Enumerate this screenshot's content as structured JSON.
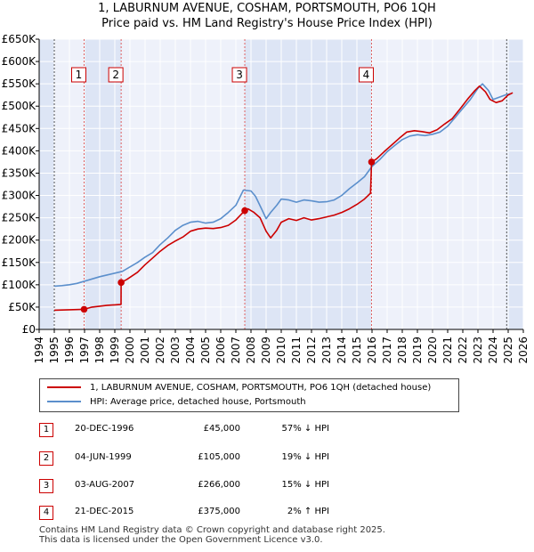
{
  "chart_data": {
    "type": "line",
    "title": "1, LABURNUM AVENUE, COSHAM, PORTSMOUTH, PO6 1QH",
    "subtitle": "Price paid vs. HM Land Registry's House Price Index (HPI)",
    "xlim": [
      1994,
      2026
    ],
    "ylim": [
      0,
      650000
    ],
    "x_ticks": [
      1994,
      1995,
      1996,
      1997,
      1998,
      1999,
      2000,
      2001,
      2002,
      2003,
      2004,
      2005,
      2006,
      2007,
      2008,
      2009,
      2010,
      2011,
      2012,
      2013,
      2014,
      2015,
      2016,
      2017,
      2018,
      2019,
      2020,
      2021,
      2022,
      2023,
      2024,
      2025,
      2026
    ],
    "y_ticks": [
      0,
      50000,
      100000,
      150000,
      200000,
      250000,
      300000,
      350000,
      400000,
      450000,
      500000,
      550000,
      600000,
      650000
    ],
    "y_tick_labels": [
      "£0",
      "£50K",
      "£100K",
      "£150K",
      "£200K",
      "£250K",
      "£300K",
      "£350K",
      "£400K",
      "£450K",
      "£500K",
      "£550K",
      "£600K",
      "£650K"
    ],
    "shaded_ranges": [
      [
        1994,
        1995
      ],
      [
        1996.97,
        1999.42
      ],
      [
        2007.59,
        2015.97
      ],
      [
        2024.9,
        2026
      ]
    ],
    "series": [
      {
        "name": "1, LABURNUM AVENUE, COSHAM, PORTSMOUTH, PO6 1QH (detached house)",
        "color": "#cc0000",
        "x": [
          1995.0,
          1996.0,
          1996.97,
          1997.5,
          1998.0,
          1998.5,
          1999.0,
          1999.41,
          1999.42,
          1999.8,
          2000.5,
          2001.0,
          2001.5,
          2002.0,
          2002.5,
          2003.0,
          2003.5,
          2004.0,
          2004.5,
          2005.0,
          2005.5,
          2006.0,
          2006.5,
          2007.0,
          2007.59,
          2007.8,
          2008.2,
          2008.6,
          2009.0,
          2009.3,
          2009.7,
          2010.0,
          2010.5,
          2011.0,
          2011.5,
          2012.0,
          2012.5,
          2013.0,
          2013.5,
          2014.0,
          2014.5,
          2015.0,
          2015.5,
          2015.9,
          2015.97,
          2016.3,
          2016.8,
          2017.3,
          2017.8,
          2018.3,
          2018.8,
          2019.3,
          2019.8,
          2020.3,
          2020.8,
          2021.3,
          2021.8,
          2022.3,
          2022.8,
          2023.1,
          2023.5,
          2023.8,
          2024.2,
          2024.6,
          2025.0,
          2025.3
        ],
        "y": [
          43000,
          44000,
          45000,
          50000,
          52000,
          54000,
          55000,
          56000,
          105000,
          112000,
          128000,
          145000,
          160000,
          175000,
          188000,
          198000,
          207000,
          220000,
          225000,
          227000,
          226000,
          228000,
          233000,
          245000,
          266000,
          270000,
          262000,
          250000,
          220000,
          205000,
          222000,
          240000,
          248000,
          244000,
          250000,
          245000,
          248000,
          252000,
          256000,
          262000,
          270000,
          280000,
          292000,
          305000,
          375000,
          382000,
          398000,
          413000,
          428000,
          442000,
          445000,
          443000,
          440000,
          447000,
          460000,
          472000,
          493000,
          515000,
          535000,
          545000,
          532000,
          515000,
          508000,
          512000,
          525000,
          530000
        ]
      },
      {
        "name": "HPI: Average price, detached house, Portsmouth",
        "color": "#5b8fcc",
        "x": [
          1995.0,
          1995.5,
          1996.0,
          1996.5,
          1997.0,
          1997.5,
          1998.0,
          1998.5,
          1999.0,
          1999.5,
          2000.0,
          2000.5,
          2001.0,
          2001.5,
          2002.0,
          2002.5,
          2003.0,
          2003.5,
          2004.0,
          2004.5,
          2005.0,
          2005.5,
          2006.0,
          2006.5,
          2007.0,
          2007.5,
          2008.0,
          2008.3,
          2008.7,
          2009.0,
          2009.3,
          2009.7,
          2010.0,
          2010.5,
          2011.0,
          2011.5,
          2012.0,
          2012.5,
          2013.0,
          2013.5,
          2014.0,
          2014.5,
          2015.0,
          2015.5,
          2016.0,
          2016.5,
          2017.0,
          2017.5,
          2018.0,
          2018.5,
          2019.0,
          2019.5,
          2020.0,
          2020.5,
          2021.0,
          2021.5,
          2022.0,
          2022.5,
          2023.0,
          2023.3,
          2023.7,
          2024.0,
          2024.4,
          2024.8,
          2025.2
        ],
        "y": [
          97000,
          98000,
          100000,
          103000,
          108000,
          113000,
          118000,
          122000,
          126000,
          130000,
          140000,
          150000,
          162000,
          172000,
          190000,
          205000,
          222000,
          233000,
          240000,
          242000,
          238000,
          240000,
          248000,
          262000,
          278000,
          312000,
          310000,
          298000,
          270000,
          248000,
          262000,
          278000,
          292000,
          290000,
          285000,
          290000,
          288000,
          285000,
          286000,
          290000,
          300000,
          315000,
          328000,
          342000,
          365000,
          380000,
          398000,
          412000,
          425000,
          433000,
          436000,
          434000,
          437000,
          442000,
          455000,
          475000,
          495000,
          515000,
          540000,
          550000,
          535000,
          515000,
          520000,
          525000,
          528000
        ]
      }
    ],
    "sales": [
      {
        "label": "1",
        "x": 1996.97,
        "price": 45000
      },
      {
        "label": "2",
        "x": 1999.42,
        "price": 105000
      },
      {
        "label": "3",
        "x": 2007.59,
        "price": 266000
      },
      {
        "label": "4",
        "x": 2015.97,
        "price": 375000
      }
    ]
  },
  "legend": {
    "property": "1, LABURNUM AVENUE, COSHAM, PORTSMOUTH, PO6 1QH (detached house)",
    "hpi": "HPI: Average price, detached house, Portsmouth"
  },
  "transactions": [
    {
      "num": "1",
      "date": "20-DEC-1996",
      "price": "£45,000",
      "hpi": "57% ↓ HPI"
    },
    {
      "num": "2",
      "date": "04-JUN-1999",
      "price": "£105,000",
      "hpi": "19% ↓ HPI"
    },
    {
      "num": "3",
      "date": "03-AUG-2007",
      "price": "£266,000",
      "hpi": "15% ↓ HPI"
    },
    {
      "num": "4",
      "date": "21-DEC-2015",
      "price": "£375,000",
      "hpi": "2% ↑ HPI"
    }
  ],
  "footer": {
    "line1": "Contains HM Land Registry data © Crown copyright and database right 2025.",
    "line2": "This data is licensed under the Open Government Licence v3.0."
  },
  "colors": {
    "property": "#cc0000",
    "hpi": "#5b8fcc",
    "plot_bg": "#eef1fa",
    "shade": "#dde5f5"
  }
}
